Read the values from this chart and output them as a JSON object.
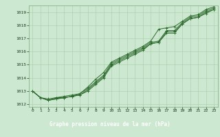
{
  "background_color": "#cce8d0",
  "plot_bg_color": "#cce8d0",
  "grid_color": "#aaccaa",
  "line_color": "#2d6a2d",
  "title": "Graphe pression niveau de la mer (hPa)",
  "title_bg": "#3a7a3a",
  "title_color": "#ffffff",
  "xlim": [
    -0.5,
    23.5
  ],
  "ylim": [
    1011.8,
    1019.5
  ],
  "yticks": [
    1012,
    1013,
    1014,
    1015,
    1016,
    1017,
    1018,
    1019
  ],
  "xticks": [
    0,
    1,
    2,
    3,
    4,
    5,
    6,
    7,
    8,
    9,
    10,
    11,
    12,
    13,
    14,
    15,
    16,
    17,
    18,
    19,
    20,
    21,
    22,
    23
  ],
  "series": [
    [
      1013.0,
      1012.5,
      1012.3,
      1012.4,
      1012.5,
      1012.6,
      1012.7,
      1013.0,
      1013.5,
      1014.0,
      1014.9,
      1015.2,
      1015.5,
      1015.8,
      1016.1,
      1016.6,
      1016.7,
      1017.4,
      1017.4,
      1018.1,
      1018.5,
      1018.6,
      1018.9,
      1019.2
    ],
    [
      1013.0,
      1012.5,
      1012.3,
      1012.4,
      1012.5,
      1012.6,
      1012.7,
      1013.1,
      1013.6,
      1014.1,
      1015.0,
      1015.3,
      1015.6,
      1015.9,
      1016.2,
      1016.6,
      1016.7,
      1017.5,
      1017.5,
      1018.1,
      1018.5,
      1018.6,
      1019.0,
      1019.2
    ],
    [
      1013.0,
      1012.5,
      1012.3,
      1012.5,
      1012.5,
      1012.6,
      1012.8,
      1013.2,
      1013.7,
      1014.2,
      1015.1,
      1015.4,
      1015.7,
      1016.0,
      1016.3,
      1016.7,
      1016.8,
      1017.6,
      1017.6,
      1018.2,
      1018.6,
      1018.7,
      1019.1,
      1019.3
    ],
    [
      1013.0,
      1012.5,
      1012.4,
      1012.5,
      1012.6,
      1012.7,
      1012.8,
      1013.3,
      1013.9,
      1014.4,
      1015.2,
      1015.5,
      1015.8,
      1016.1,
      1016.4,
      1016.8,
      1017.7,
      1017.8,
      1017.9,
      1018.3,
      1018.7,
      1018.8,
      1019.2,
      1019.4
    ]
  ]
}
